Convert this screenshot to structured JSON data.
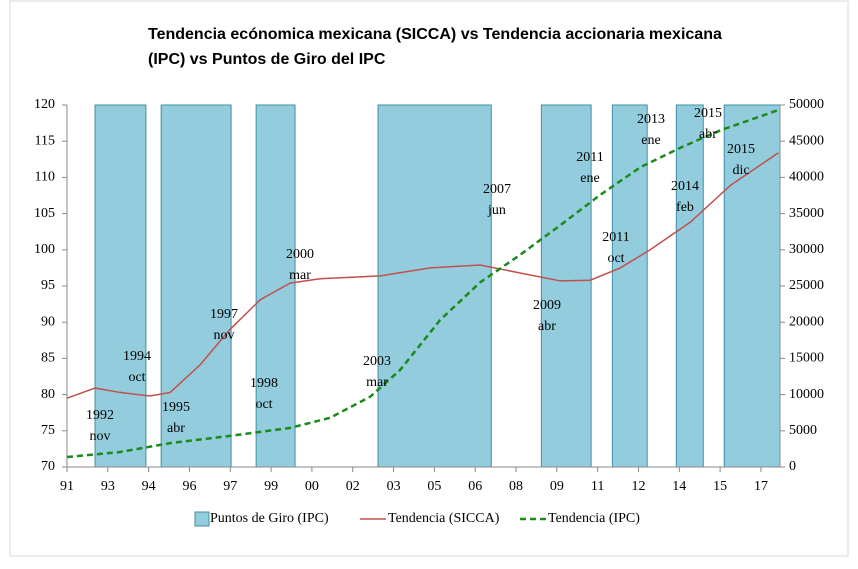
{
  "chart_data": {
    "type": "line",
    "title": [
      "Tendencia ecónomica mexicana (SICCA) vs Tendencia accionaria mexicana",
      "(IPC) vs Puntos de Giro del IPC"
    ],
    "xlim": [
      1991,
      2017.2
    ],
    "xticks": [
      {
        "value": 1991,
        "label": "91"
      },
      {
        "value": 1992.5,
        "label": "93"
      },
      {
        "value": 1994,
        "label": "94"
      },
      {
        "value": 1995.5,
        "label": "96"
      },
      {
        "value": 1997,
        "label": "97"
      },
      {
        "value": 1998.5,
        "label": "99"
      },
      {
        "value": 2000,
        "label": "00"
      },
      {
        "value": 2001.5,
        "label": "02"
      },
      {
        "value": 2003,
        "label": "03"
      },
      {
        "value": 2004.5,
        "label": "05"
      },
      {
        "value": 2006,
        "label": "06"
      },
      {
        "value": 2007.5,
        "label": "08"
      },
      {
        "value": 2009,
        "label": "09"
      },
      {
        "value": 2010.5,
        "label": "11"
      },
      {
        "value": 2012,
        "label": "12"
      },
      {
        "value": 2013.5,
        "label": "14"
      },
      {
        "value": 2015,
        "label": "15"
      },
      {
        "value": 2016.5,
        "label": "17"
      }
    ],
    "ylim": [
      70,
      120
    ],
    "yticks": [
      70,
      75,
      80,
      85,
      90,
      95,
      100,
      105,
      110,
      115,
      120
    ],
    "y2lim": [
      0,
      50000
    ],
    "y2ticks": [
      0,
      5000,
      10000,
      15000,
      20000,
      25000,
      30000,
      35000,
      40000,
      45000,
      50000
    ],
    "series": [
      {
        "name": "Puntos de Giro (IPC)",
        "type": "band",
        "color": "#93cddd",
        "edge": "#3f8fa5",
        "x_start": [
          1992.03,
          1994.46,
          1997.95,
          2002.43,
          2008.43,
          2011.04,
          2013.39,
          2015.15
        ],
        "x_end": [
          1993.9,
          1997.03,
          1999.38,
          2006.59,
          2010.26,
          2012.32,
          2014.38,
          2017.2
        ],
        "values": [
          120,
          120,
          120,
          120,
          120,
          120,
          120,
          120
        ]
      },
      {
        "name": "Tendencia (SICCA)",
        "color": "#c0504d",
        "dashed": false,
        "x": [
          1991,
          1992.03,
          1992.95,
          1994.05,
          1994.79,
          1995.89,
          1996.99,
          1998.1,
          1999.2,
          2000.3,
          2002.51,
          2004.35,
          2006.18,
          2007.65,
          2009.13,
          2010.23,
          2011.33,
          2012.43,
          2013.9,
          2015.38,
          2017.14
        ],
        "values": [
          79.5,
          80.9,
          80.3,
          79.8,
          80.3,
          84.1,
          89,
          93.1,
          95.4,
          96,
          96.4,
          97.5,
          97.9,
          96.8,
          95.7,
          95.8,
          97.5,
          100,
          103.8,
          108.9,
          113.4
        ]
      },
      {
        "name": "Tendencia (IPC)",
        "color": "#1a8a1a",
        "dashed": true,
        "axis": "y2",
        "x": [
          1991,
          1992.95,
          1994.79,
          1996.99,
          1999.2,
          2000.67,
          2002.14,
          2003.24,
          2004.71,
          2006.18,
          2007.65,
          2009.13,
          2010.6,
          2012.07,
          2013.54,
          2015.01,
          2017.14
        ],
        "values": [
          1380,
          2070,
          3300,
          4300,
          5400,
          6800,
          9700,
          13400,
          20300,
          25500,
          29300,
          33400,
          37600,
          41400,
          44100,
          46500,
          49300
        ]
      }
    ],
    "annotations": [
      [
        "1992",
        "nov"
      ],
      [
        "1994",
        "oct"
      ],
      [
        "1995",
        "abr"
      ],
      [
        "1997",
        "nov"
      ],
      [
        "1998",
        "oct"
      ],
      [
        "2000",
        "mar"
      ],
      [
        "2003",
        "mar"
      ],
      [
        "2007",
        "jun"
      ],
      [
        "2009",
        "abr"
      ],
      [
        "2011",
        "ene"
      ],
      [
        "2011",
        "oct"
      ],
      [
        "2013",
        "ene"
      ],
      [
        "2014",
        "feb"
      ],
      [
        "2015",
        "abr"
      ],
      [
        "2015",
        "dic"
      ]
    ],
    "legend": "bottom"
  }
}
